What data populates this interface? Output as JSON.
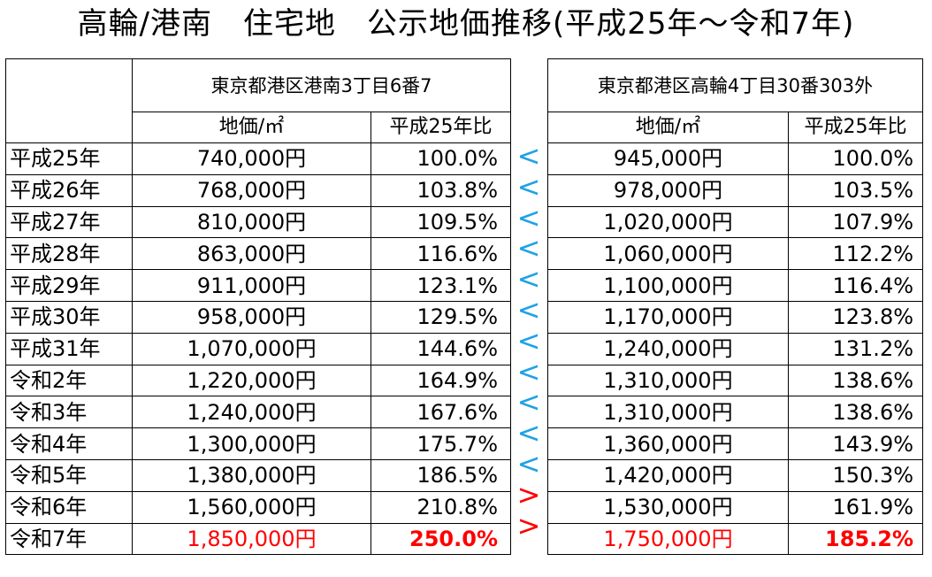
{
  "title": "高輪/港南　住宅地　公示地価推移(平成25年～令和7年)",
  "left": {
    "location": "東京都港区港南3丁目6番7",
    "col_price": "地価/㎡",
    "col_ratio": "平成25年比"
  },
  "right": {
    "location": "東京都港区高輪4丁目30番303外",
    "col_price": "地価/㎡",
    "col_ratio": "平成25年比"
  },
  "colors": {
    "less_than": "#1fa2e6",
    "greater_than": "#ff0000",
    "highlight": "#ff0000"
  },
  "rows": [
    {
      "year": "平成25年",
      "left_price": "740,000円",
      "left_ratio": "100.0%",
      "cmp": "<",
      "right_price": "945,000円",
      "right_ratio": "100.0%"
    },
    {
      "year": "平成26年",
      "left_price": "768,000円",
      "left_ratio": "103.8%",
      "cmp": "<",
      "right_price": "978,000円",
      "right_ratio": "103.5%"
    },
    {
      "year": "平成27年",
      "left_price": "810,000円",
      "left_ratio": "109.5%",
      "cmp": "<",
      "right_price": "1,020,000円",
      "right_ratio": "107.9%"
    },
    {
      "year": "平成28年",
      "left_price": "863,000円",
      "left_ratio": "116.6%",
      "cmp": "<",
      "right_price": "1,060,000円",
      "right_ratio": "112.2%"
    },
    {
      "year": "平成29年",
      "left_price": "911,000円",
      "left_ratio": "123.1%",
      "cmp": "<",
      "right_price": "1,100,000円",
      "right_ratio": "116.4%"
    },
    {
      "year": "平成30年",
      "left_price": "958,000円",
      "left_ratio": "129.5%",
      "cmp": "<",
      "right_price": "1,170,000円",
      "right_ratio": "123.8%"
    },
    {
      "year": "平成31年",
      "left_price": "1,070,000円",
      "left_ratio": "144.6%",
      "cmp": "<",
      "right_price": "1,240,000円",
      "right_ratio": "131.2%"
    },
    {
      "year": "令和2年",
      "left_price": "1,220,000円",
      "left_ratio": "164.9%",
      "cmp": "<",
      "right_price": "1,310,000円",
      "right_ratio": "138.6%"
    },
    {
      "year": "令和3年",
      "left_price": "1,240,000円",
      "left_ratio": "167.6%",
      "cmp": "<",
      "right_price": "1,310,000円",
      "right_ratio": "138.6%"
    },
    {
      "year": "令和4年",
      "left_price": "1,300,000円",
      "left_ratio": "175.7%",
      "cmp": "<",
      "right_price": "1,360,000円",
      "right_ratio": "143.9%"
    },
    {
      "year": "令和5年",
      "left_price": "1,380,000円",
      "left_ratio": "186.5%",
      "cmp": "<",
      "right_price": "1,420,000円",
      "right_ratio": "150.3%"
    },
    {
      "year": "令和6年",
      "left_price": "1,560,000円",
      "left_ratio": "210.8%",
      "cmp": ">",
      "right_price": "1,530,000円",
      "right_ratio": "161.9%"
    },
    {
      "year": "令和7年",
      "left_price": "1,850,000円",
      "left_ratio": "250.0%",
      "cmp": ">",
      "right_price": "1,750,000円",
      "right_ratio": "185.2%",
      "highlight": true
    }
  ]
}
